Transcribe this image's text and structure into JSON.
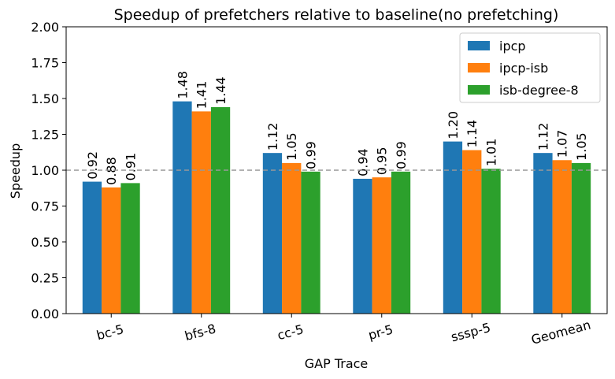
{
  "chart_data": {
    "type": "bar",
    "title": "Speedup of prefetchers relative to baseline(no prefetching)",
    "xlabel": "GAP Trace",
    "ylabel": "Speedup",
    "ylim": [
      0,
      2.0
    ],
    "yticks": [
      "0.00",
      "0.25",
      "0.50",
      "0.75",
      "1.00",
      "1.25",
      "1.50",
      "1.75",
      "2.00"
    ],
    "categories": [
      "bc-5",
      "bfs-8",
      "cc-5",
      "pr-5",
      "sssp-5",
      "Geomean"
    ],
    "series": [
      {
        "name": "ipcp",
        "color": "#1f77b4",
        "values": [
          0.92,
          1.48,
          1.12,
          0.94,
          1.2,
          1.12
        ],
        "labels": [
          "0.92",
          "1.48",
          "1.12",
          "0.94",
          "1.20",
          "1.12"
        ]
      },
      {
        "name": "ipcp-isb",
        "color": "#ff7f0e",
        "values": [
          0.88,
          1.41,
          1.05,
          0.95,
          1.14,
          1.07
        ],
        "labels": [
          "0.88",
          "1.41",
          "1.05",
          "0.95",
          "1.14",
          "1.07"
        ]
      },
      {
        "name": "isb-degree-8",
        "color": "#2ca02c",
        "values": [
          0.91,
          1.44,
          0.99,
          0.99,
          1.01,
          1.05
        ],
        "labels": [
          "0.91",
          "1.44",
          "0.99",
          "0.99",
          "1.01",
          "1.05"
        ]
      }
    ],
    "reference_line": {
      "y": 1.0,
      "style": "dashed",
      "color": "#999999"
    },
    "legend_position": "top-right",
    "grid": false
  }
}
